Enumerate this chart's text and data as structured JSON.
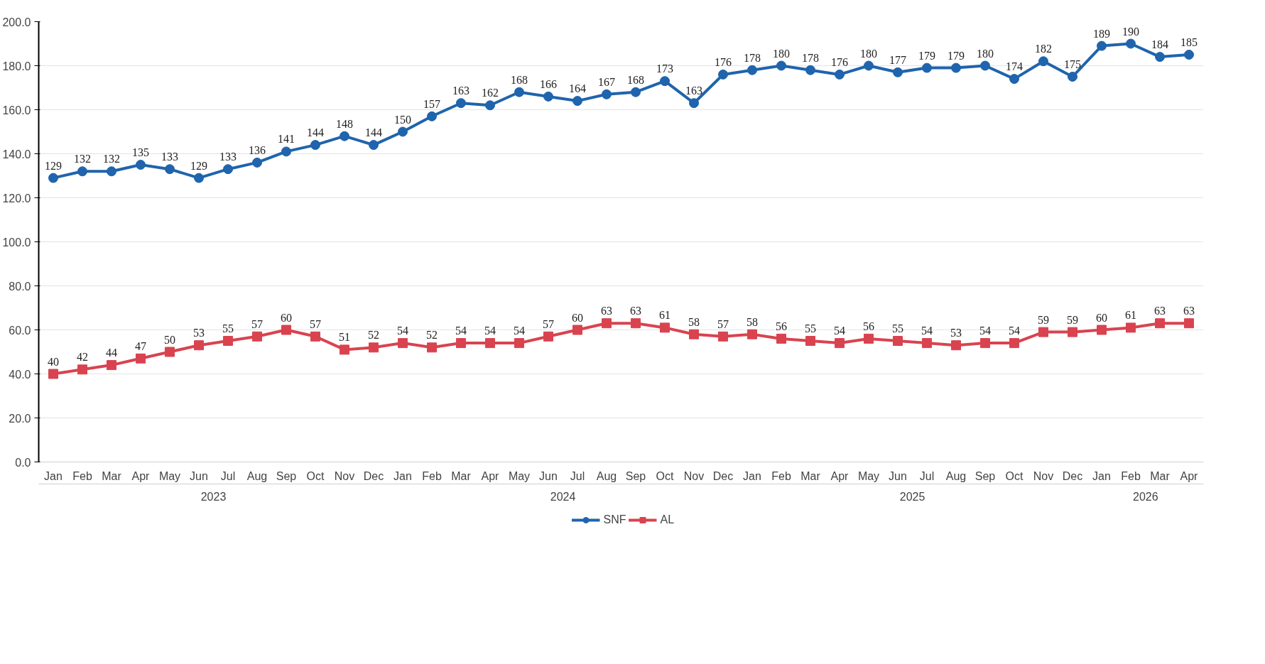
{
  "chart_data": {
    "type": "line",
    "categories": [
      "Jan",
      "Feb",
      "Mar",
      "Apr",
      "May",
      "Jun",
      "Jul",
      "Aug",
      "Sep",
      "Oct",
      "Nov",
      "Dec",
      "Jan",
      "Feb",
      "Mar",
      "Apr",
      "May",
      "Jun",
      "Jul",
      "Aug",
      "Sep",
      "Oct",
      "Nov",
      "Dec",
      "Jan",
      "Feb",
      "Mar",
      "Apr",
      "May",
      "Jun",
      "Jul",
      "Aug",
      "Sep",
      "Oct",
      "Nov",
      "Dec",
      "Jan",
      "Feb",
      "Mar",
      "Apr"
    ],
    "x2lim": [
      2023,
      2026.333
    ],
    "x2ticks": [
      {
        "value": 2023.5,
        "label": "2023"
      },
      {
        "value": 2024.5,
        "label": "2024"
      },
      {
        "value": 2025.5,
        "label": "2025"
      },
      {
        "value": 2026.167,
        "label": "2026"
      }
    ],
    "series": [
      {
        "name": "SNF",
        "color": "#1f64ad",
        "marker": "circle",
        "values": [
          129,
          132,
          132,
          135,
          133,
          129,
          133,
          136,
          141,
          144,
          148,
          144,
          150,
          157,
          163,
          162,
          168,
          166,
          164,
          167,
          168,
          173,
          163,
          176,
          178,
          180,
          178,
          176,
          180,
          177,
          179,
          179,
          180,
          174,
          182,
          175,
          189,
          190,
          184,
          185
        ]
      },
      {
        "name": "AL",
        "color": "#d9434f",
        "marker": "square",
        "values": [
          40,
          42,
          44,
          47,
          50,
          53,
          55,
          57,
          60,
          57,
          51,
          52,
          54,
          52,
          54,
          54,
          54,
          57,
          60,
          63,
          63,
          61,
          58,
          57,
          58,
          56,
          55,
          54,
          56,
          55,
          54,
          53,
          54,
          54,
          59,
          59,
          60,
          61,
          63,
          63
        ]
      }
    ],
    "ylim": [
      0,
      200
    ],
    "yticks": [
      {
        "value": 0,
        "label": "0.0"
      },
      {
        "value": 20,
        "label": "20.0"
      },
      {
        "value": 40,
        "label": "40.0"
      },
      {
        "value": 60,
        "label": "60.0"
      },
      {
        "value": 80,
        "label": "80.0"
      },
      {
        "value": 100,
        "label": "100.0"
      },
      {
        "value": 120,
        "label": "120.0"
      },
      {
        "value": 140,
        "label": "140.0"
      },
      {
        "value": 160,
        "label": "160.0"
      },
      {
        "value": 180,
        "label": "180.0"
      },
      {
        "value": 200,
        "label": "200.0"
      }
    ],
    "grid": "y",
    "legend": "bottom",
    "data_labels": true,
    "line_style": "solid"
  }
}
